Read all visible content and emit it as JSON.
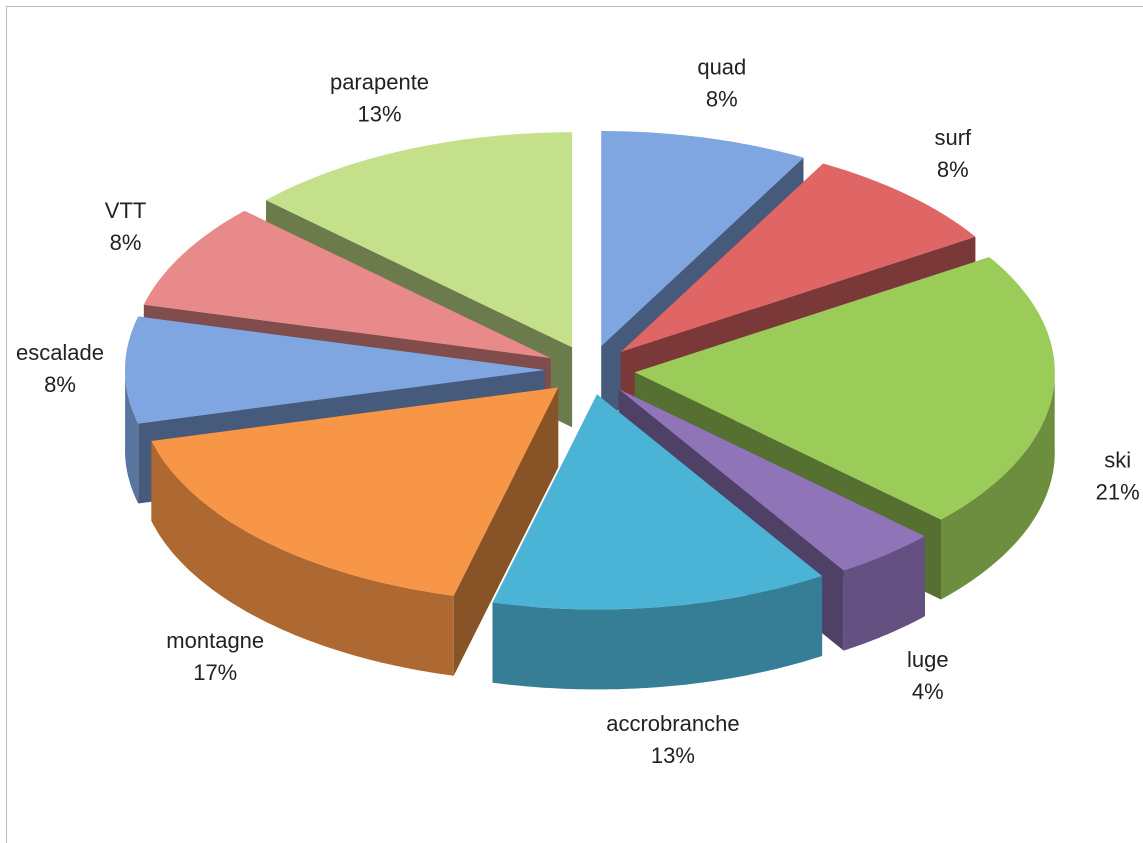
{
  "chart_data": {
    "type": "pie3d",
    "categories": [
      "quad",
      "surf",
      "ski",
      "luge",
      "accrobranche",
      "montagne",
      "escalade",
      "VTT",
      "parapente"
    ],
    "values": [
      8,
      8,
      21,
      4,
      13,
      17,
      8,
      8,
      13
    ],
    "value_labels": [
      "8%",
      "8%",
      "21%",
      "4%",
      "13%",
      "17%",
      "8%",
      "8%",
      "13%"
    ],
    "colors": [
      "#7fa6e0",
      "#e06666",
      "#9bcb59",
      "#8f74b8",
      "#4bb4d6",
      "#f79646",
      "#7fa6e0",
      "#e88a8a",
      "#c4e08a"
    ]
  }
}
